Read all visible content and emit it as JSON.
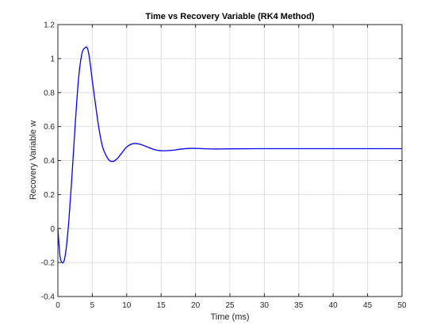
{
  "chart_data": {
    "type": "line",
    "title": "Time vs Recovery Variable (RK4 Method)",
    "xlabel": "Time (ms)",
    "ylabel": "Recovery Variable w",
    "xlim": [
      0,
      50
    ],
    "ylim": [
      -0.4,
      1.2
    ],
    "xticks": [
      0,
      5,
      10,
      15,
      20,
      25,
      30,
      35,
      40,
      45,
      50
    ],
    "xtick_labels": [
      "0",
      "5",
      "10",
      "15",
      "20",
      "25",
      "30",
      "35",
      "40",
      "45",
      "50"
    ],
    "yticks": [
      -0.4,
      -0.2,
      0,
      0.2,
      0.4,
      0.6,
      0.8,
      1.0,
      1.2
    ],
    "ytick_labels": [
      "-0.4",
      "-0.2",
      "0",
      "0.2",
      "0.4",
      "0.6",
      "0.8",
      "1",
      "1.2"
    ],
    "grid": true,
    "line_color": "#0000ff",
    "series": [
      {
        "x": [
          0,
          0.3,
          0.6,
          0.9,
          1.2,
          1.6,
          2.0,
          2.5,
          3.0,
          3.5,
          4.0,
          4.3,
          4.6,
          5.0,
          5.5,
          6.0,
          6.5,
          7.0,
          7.5,
          8.0,
          8.6,
          9.2,
          10.0,
          11.0,
          12.0,
          13.0,
          14.0,
          15.0,
          16.5,
          18.0,
          19.5,
          21.0,
          23.0,
          25.0,
          30.0,
          40.0,
          50.0
        ],
        "y": [
          0.0,
          -0.16,
          -0.2,
          -0.19,
          -0.12,
          0.05,
          0.28,
          0.6,
          0.88,
          1.03,
          1.065,
          1.06,
          1.0,
          0.87,
          0.72,
          0.58,
          0.48,
          0.43,
          0.4,
          0.395,
          0.41,
          0.44,
          0.48,
          0.5,
          0.495,
          0.48,
          0.465,
          0.458,
          0.46,
          0.468,
          0.472,
          0.47,
          0.468,
          0.469,
          0.47,
          0.47,
          0.47
        ]
      }
    ]
  }
}
